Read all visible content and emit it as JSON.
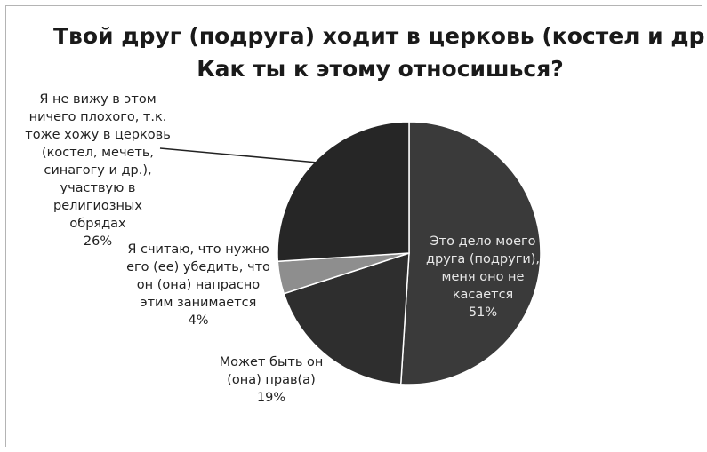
{
  "chart_data": {
    "type": "pie",
    "title": "Твой друг (подруга) ходит в церковь (костел и др.). Как ты к этому относишься?",
    "title_lines": [
      "Твой друг (подруга) ходит в церковь (костел и др.).",
      "Как ты к этому относишься?"
    ],
    "slices": [
      {
        "label": "Это дело моего друга (подруги), меня оно не касается",
        "label_lines": [
          "Это дело моего",
          "друга (подруги),",
          "меня оно не",
          "касается"
        ],
        "value": 51,
        "percent_label": "51%",
        "color": "#3a3a3a"
      },
      {
        "label": "Может быть он (она) прав(а)",
        "label_lines": [
          "Может быть он",
          "(она) прав(а)"
        ],
        "value": 19,
        "percent_label": "19%",
        "color": "#2e2e2e"
      },
      {
        "label": "Я считаю, что нужно его (ее) убедить, что он (она) напрасно этим занимается",
        "label_lines": [
          "Я считаю, что нужно",
          "его (ее) убедить, что",
          "он (она) напрасно",
          "этим занимается"
        ],
        "value": 4,
        "percent_label": "4%",
        "color": "#8e8e8e"
      },
      {
        "label": "Я не вижу в этом ничего плохого, т.к. тоже хожу в церковь (костел, мечеть, синагогу и др.), участвую в религиозных обрядах",
        "label_lines": [
          "Я не вижу в этом",
          "ничего плохого, т.к.",
          "тоже хожу в церковь",
          "(костел, мечеть,",
          "синагогу и др.),",
          "участвую в",
          "религиозных",
          "обрядах"
        ],
        "value": 26,
        "percent_label": "26%",
        "color": "#262626"
      }
    ],
    "slice_border_color": "#ffffff",
    "legend": "none"
  }
}
